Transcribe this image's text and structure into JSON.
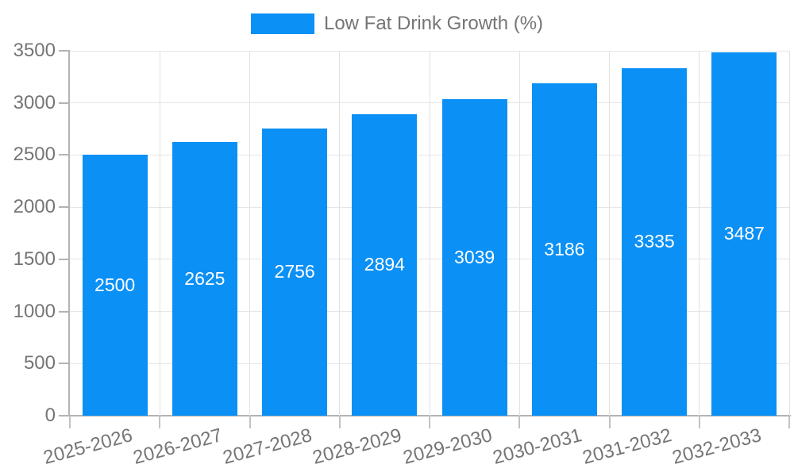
{
  "legend": {
    "label": "Low Fat Drink Growth (%)",
    "swatch_color": "#0b90f5"
  },
  "chart_data": {
    "type": "bar",
    "title": "",
    "categories": [
      "2025-2026",
      "2026-2027",
      "2027-2028",
      "2028-2029",
      "2029-2030",
      "2030-2031",
      "2031-2032",
      "2032-2033"
    ],
    "series": [
      {
        "name": "Low Fat Drink Growth (%)",
        "values": [
          2500,
          2625,
          2756,
          2894,
          3039,
          3186,
          3335,
          3487
        ],
        "color": "#0b90f5"
      }
    ],
    "xlabel": "",
    "ylabel": "",
    "ylim": [
      0,
      3500
    ],
    "yticks": [
      0,
      500,
      1000,
      1500,
      2000,
      2500,
      3000,
      3500
    ],
    "grid": true,
    "legend_position": "top-center",
    "bar_labels": "inside-center",
    "bar_label_color": "#ffffff",
    "xtick_rotation_deg": -15
  },
  "colors": {
    "bar": "#0b90f5",
    "text": "#757575",
    "axis": "#b3b3b3",
    "grid": "#e6e6e6",
    "bar_label": "#ffffff",
    "background": "#ffffff"
  }
}
